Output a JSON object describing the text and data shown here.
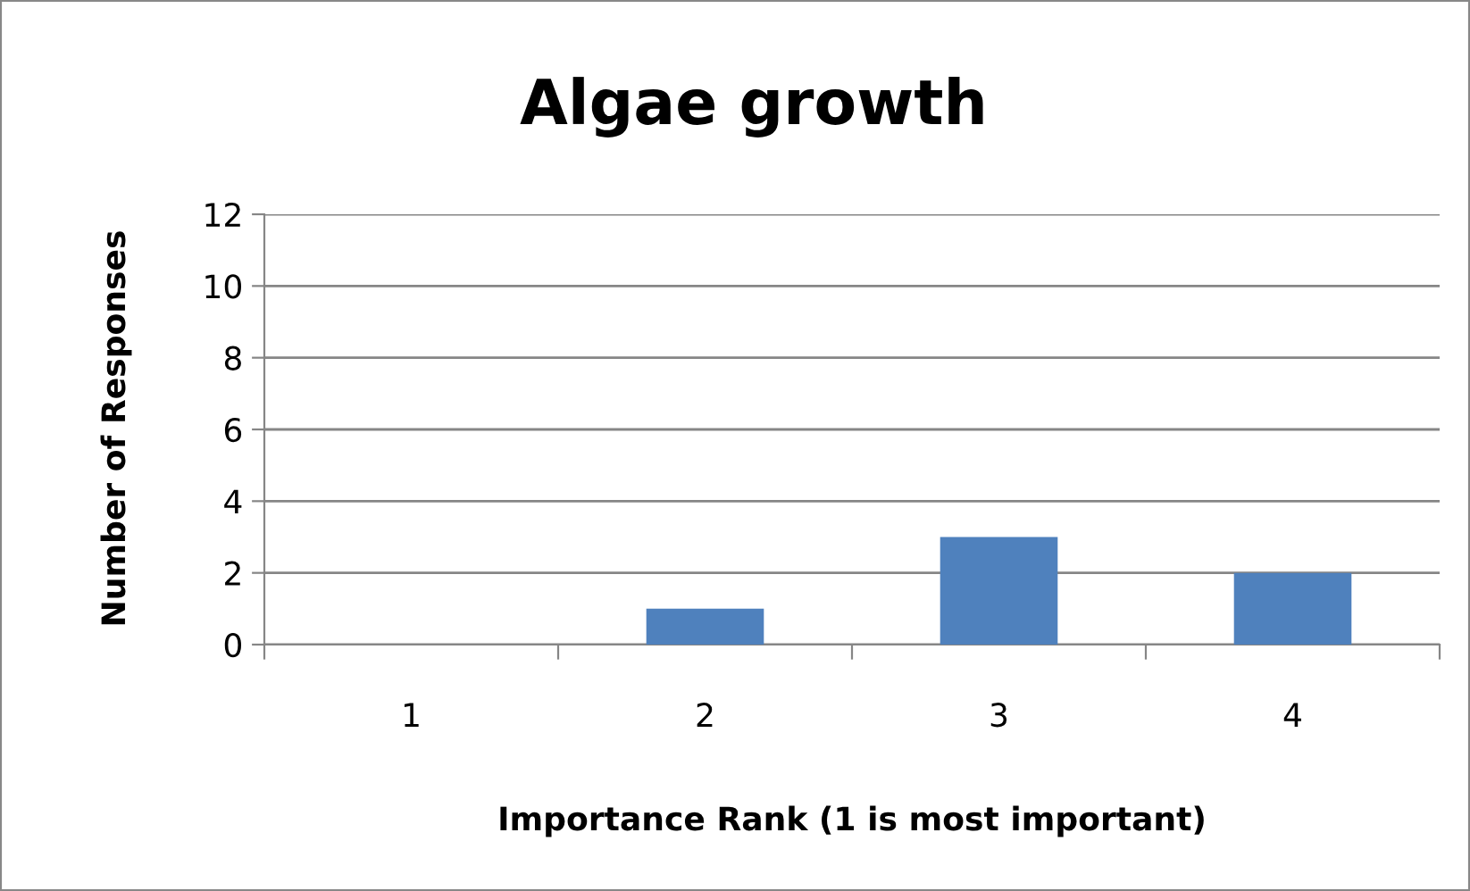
{
  "chart_data": {
    "type": "bar",
    "title": "Algae growth",
    "xlabel": "Importance Rank (1 is most important)",
    "ylabel": "Number of Responses",
    "categories": [
      "1",
      "2",
      "3",
      "4"
    ],
    "values": [
      0,
      1,
      3,
      2
    ],
    "color": "#4f81bd",
    "ylim": [
      0,
      12
    ],
    "yticks": [
      0,
      2,
      4,
      6,
      8,
      10,
      12
    ],
    "grid": "y",
    "legend": false
  }
}
